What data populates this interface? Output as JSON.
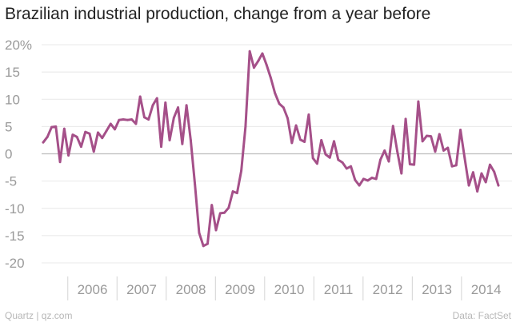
{
  "chart_data": {
    "type": "line",
    "title": "Brazilian industrial production, change from a year before",
    "xlabel": "",
    "ylabel": "",
    "ylim": [
      -20,
      20
    ],
    "yticks": [
      {
        "value": 20,
        "label": "20%"
      },
      {
        "value": 15,
        "label": "15"
      },
      {
        "value": 10,
        "label": "10"
      },
      {
        "value": 5,
        "label": "5"
      },
      {
        "value": 0,
        "label": "0"
      },
      {
        "value": -5,
        "label": "-5"
      },
      {
        "value": -10,
        "label": "-10"
      },
      {
        "value": -15,
        "label": "-15"
      },
      {
        "value": -20,
        "label": "-20"
      }
    ],
    "xticks": [
      "2006",
      "2007",
      "2008",
      "2009",
      "2010",
      "2011",
      "2012",
      "2013",
      "2014"
    ],
    "x_start": "2005-07",
    "x_end": "2014-10",
    "series": [
      {
        "name": "Industrial production YoY %",
        "color": "#a55089",
        "values": [
          2.1,
          3.1,
          4.9,
          5.0,
          -1.5,
          4.6,
          -0.3,
          3.5,
          3.1,
          1.3,
          4.0,
          3.7,
          0.4,
          3.9,
          2.9,
          4.2,
          5.5,
          4.5,
          6.2,
          6.3,
          6.2,
          6.3,
          5.5,
          10.5,
          6.7,
          6.3,
          8.9,
          10.2,
          1.3,
          9.4,
          2.5,
          6.6,
          8.5,
          1.8,
          8.9,
          2.5,
          -5.6,
          -14.5,
          -16.9,
          -16.5,
          -9.4,
          -14.0,
          -10.9,
          -10.8,
          -9.9,
          -6.9,
          -7.2,
          -3.1,
          5.0,
          18.8,
          15.8,
          17.0,
          18.4,
          16.3,
          13.9,
          11.1,
          9.2,
          8.5,
          6.5,
          2.0,
          5.2,
          2.6,
          2.2,
          7.2,
          -0.8,
          -1.8,
          2.5,
          -0.1,
          -0.7,
          2.3,
          -1.1,
          -1.6,
          -2.7,
          -2.3,
          -4.8,
          -5.8,
          -4.6,
          -4.9,
          -4.4,
          -4.6,
          -1.1,
          0.6,
          -1.4,
          5.1,
          0.5,
          -3.6,
          6.4,
          -1.9,
          -2.0,
          9.6,
          2.3,
          3.3,
          3.2,
          0.4,
          3.6,
          0.6,
          1.1,
          -2.3,
          -2.1,
          4.4,
          -0.8,
          -5.8,
          -3.4,
          -6.9,
          -3.6,
          -5.2,
          -2.0,
          -3.3,
          -5.8
        ]
      }
    ]
  },
  "footer": {
    "source_left": "Quartz | qz.com",
    "source_right": "Data: FactSet"
  },
  "colors": {
    "line": "#a55089",
    "grid": "#e8e8e8",
    "zero_line": "#bdbdbd",
    "tick_text": "#9a9a9a"
  }
}
